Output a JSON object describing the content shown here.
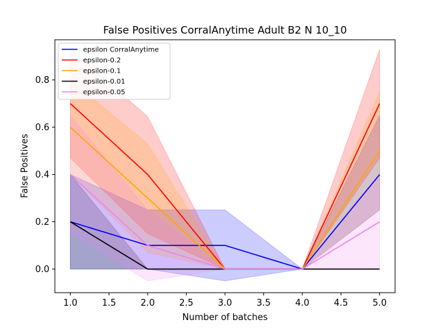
{
  "chart_data": {
    "type": "line",
    "title": "False Positives CorralAnytime Adult B2 N 10_10",
    "xlabel": "Number of batches",
    "ylabel": "False Positives",
    "xlim": [
      0.8,
      5.2
    ],
    "ylim": [
      -0.1,
      0.97
    ],
    "xticks": [
      1.0,
      1.5,
      2.0,
      2.5,
      3.0,
      3.5,
      4.0,
      4.5,
      5.0
    ],
    "xtick_labels": [
      "1.0",
      "1.5",
      "2.0",
      "2.5",
      "3.0",
      "3.5",
      "4.0",
      "4.5",
      "5.0"
    ],
    "yticks": [
      0.0,
      0.2,
      0.4,
      0.6,
      0.8
    ],
    "ytick_labels": [
      "0.0",
      "0.2",
      "0.4",
      "0.6",
      "0.8"
    ],
    "grid": false,
    "legend_position": "top-left",
    "x": [
      1,
      2,
      3,
      4,
      5
    ],
    "series": [
      {
        "name": "epsilon CorralAnytime",
        "color": "#0000ff",
        "values": [
          0.2,
          0.1,
          0.1,
          0.0,
          0.4
        ],
        "lower": [
          0.0,
          0.0,
          -0.05,
          0.0,
          0.25
        ],
        "upper": [
          0.4,
          0.25,
          0.25,
          0.0,
          0.65
        ]
      },
      {
        "name": "epsilon-0.2",
        "color": "#ff0000",
        "values": [
          0.7,
          0.4,
          0.0,
          0.0,
          0.7
        ],
        "lower": [
          0.47,
          0.15,
          0.0,
          0.0,
          0.47
        ],
        "upper": [
          0.93,
          0.645,
          0.0,
          0.0,
          0.93
        ]
      },
      {
        "name": "epsilon-0.1",
        "color": "#ffa500",
        "values": [
          0.6,
          0.3,
          0.0,
          0.0,
          0.5
        ],
        "lower": [
          0.4,
          0.07,
          0.0,
          0.0,
          0.25
        ],
        "upper": [
          0.8,
          0.53,
          0.0,
          0.0,
          0.75
        ]
      },
      {
        "name": "epsilon-0.01",
        "color": "#000000",
        "values": [
          0.2,
          0.0,
          0.0,
          0.0,
          0.0
        ],
        "lower": [
          0.0,
          0.0,
          0.0,
          0.0,
          0.0
        ],
        "upper": [
          0.4,
          0.0,
          0.0,
          0.0,
          0.0
        ]
      },
      {
        "name": "epsilon-0.05",
        "color": "#ee82ee",
        "values": [
          0.4,
          0.1,
          0.0,
          0.0,
          0.2
        ],
        "lower": [
          0.15,
          -0.05,
          0.0,
          0.0,
          0.0
        ],
        "upper": [
          0.65,
          0.25,
          0.0,
          0.0,
          0.4
        ]
      }
    ]
  }
}
